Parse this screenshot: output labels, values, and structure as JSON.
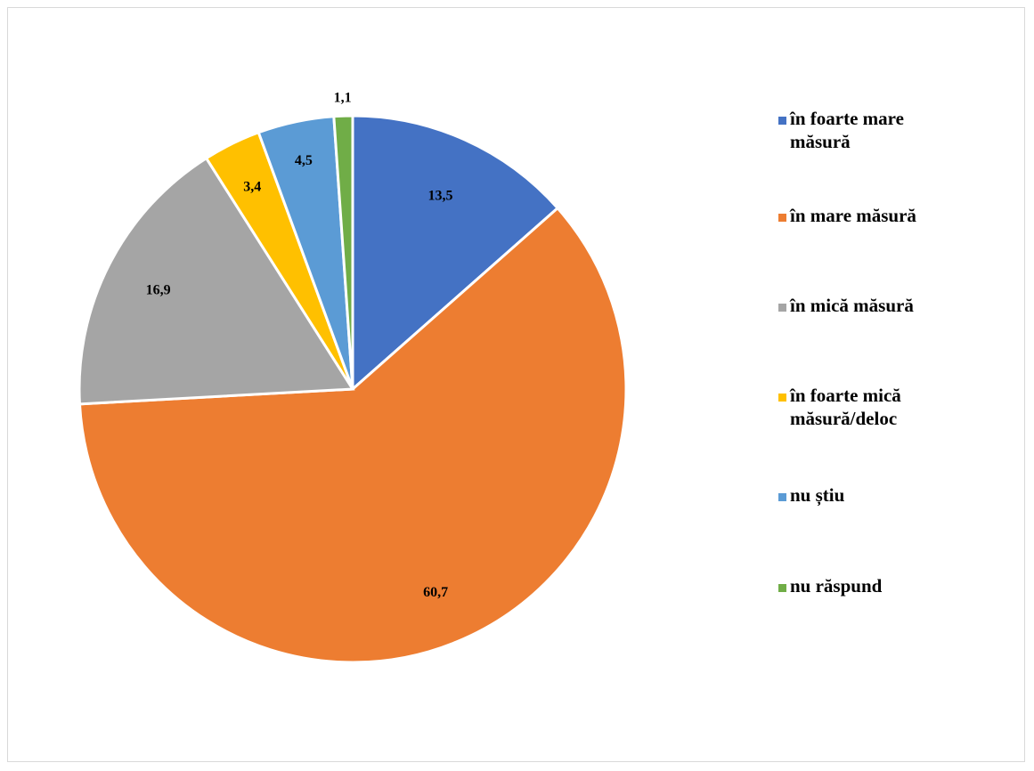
{
  "chart_data": {
    "type": "pie",
    "categories": [
      "în foarte mare măsură",
      "în mare măsură",
      "în mică măsură",
      "în foarte mică măsură/deloc",
      "nu știu",
      "nu răspund"
    ],
    "values": [
      13.5,
      60.7,
      16.9,
      3.4,
      4.5,
      1.1
    ],
    "value_labels": [
      "13,5",
      "60,7",
      "16,9",
      "3,4",
      "4,5",
      "1,1"
    ],
    "colors": [
      "#4472C4",
      "#ED7D31",
      "#A5A5A5",
      "#FFC000",
      "#5B9BD5",
      "#70AD47"
    ],
    "legend_position": "right",
    "start": "top, clockwise"
  }
}
